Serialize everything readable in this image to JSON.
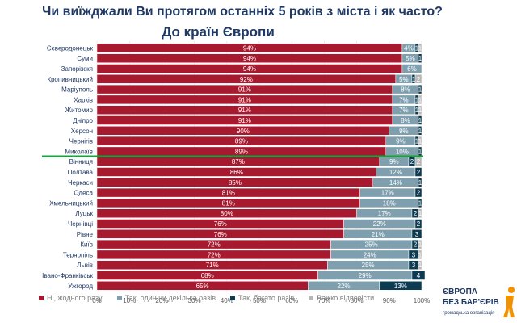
{
  "title": "Чи виїжджали Ви протягом останніх 5 років з міста і як часто?",
  "subtitle": "До країн Європи",
  "colors": {
    "never": "#a6192e",
    "once": "#7f9fae",
    "many": "#0d3c52",
    "hard": "#b7b7b7",
    "divider": "#1e9e3e"
  },
  "legend": [
    {
      "key": "never",
      "label": "Ні, жодного разу"
    },
    {
      "key": "once",
      "label": "Так, один чи декілька разів"
    },
    {
      "key": "many",
      "label": "Так, багато разів"
    },
    {
      "key": "hard",
      "label": "Важко відповісти"
    }
  ],
  "logo": {
    "line1": "ЄВРОПА",
    "line2": "БЕЗ БАР'ЄРІВ",
    "line3": "громадська організація"
  },
  "chart_data": {
    "type": "bar",
    "orientation": "horizontal",
    "stacked": true,
    "title": "Чи виїжджали Ви протягом останніх 5 років з міста і як часто?",
    "subtitle": "До країн Європи",
    "xlim": [
      0,
      100
    ],
    "xticks": [
      "0%",
      "10%",
      "20%",
      "30%",
      "40%",
      "50%",
      "60%",
      "70%",
      "80%",
      "90%",
      "100%"
    ],
    "grid": true,
    "legend_position": "bottom",
    "divider_after": "Миколаїв",
    "categories": [
      "Сєвєродонецьк",
      "Суми",
      "Запоріжжя",
      "Кропивницький",
      "Маріуполь",
      "Харків",
      "Житомир",
      "Дніпро",
      "Херсон",
      "Чернігів",
      "Миколаїв",
      "Вінниця",
      "Полтава",
      "Черкаси",
      "Одеса",
      "Хмельницький",
      "Луцьк",
      "Чернівці",
      "Рівне",
      "Київ",
      "Тернопіль",
      "Львів",
      "Івано-Франківськ",
      "Ужгород"
    ],
    "series": [
      {
        "name": "Ні, жодного разу",
        "key": "never",
        "values": [
          94,
          94,
          94,
          92,
          91,
          91,
          91,
          91,
          90,
          89,
          89,
          87,
          86,
          85,
          81,
          81,
          80,
          76,
          76,
          72,
          72,
          71,
          68,
          65
        ],
        "labels": [
          "94%",
          "94%",
          "94%",
          "92%",
          "91%",
          "91%",
          "91%",
          "91%",
          "90%",
          "89%",
          "89%",
          "87%",
          "86%",
          "85%",
          "81%",
          "81%",
          "80%",
          "76%",
          "76%",
          "72%",
          "72%",
          "71%",
          "68%",
          "65%"
        ]
      },
      {
        "name": "Так, один чи декілька разів",
        "key": "once",
        "values": [
          4,
          5,
          6,
          5,
          8,
          7,
          7,
          8,
          9,
          9,
          10,
          9,
          12,
          14,
          17,
          18,
          17,
          22,
          21,
          25,
          24,
          25,
          29,
          22
        ],
        "labels": [
          "4%",
          "5%",
          "6%",
          "5%",
          "8%",
          "7%",
          "7%",
          "8%",
          "9%",
          "9%",
          "10%",
          "9%",
          "12%",
          "14%",
          "17%",
          "18%",
          "17%",
          "22%",
          "21%",
          "25%",
          "24%",
          "25%",
          "29%",
          "22%"
        ]
      },
      {
        "name": "Так, багато разів",
        "key": "many",
        "values": [
          1,
          1,
          0,
          1,
          1,
          1,
          1,
          1,
          1,
          1,
          1,
          2,
          2,
          1,
          2,
          1,
          2,
          2,
          3,
          2,
          3,
          3,
          4,
          13
        ],
        "labels": [
          "1",
          "1",
          "",
          "1",
          "1",
          "1",
          "1",
          "1",
          "1",
          "1",
          "1",
          "2",
          "2",
          "1",
          "2",
          "1",
          "2",
          "2",
          "3",
          "2",
          "3",
          "3",
          "4",
          "13%"
        ]
      },
      {
        "name": "Важко відповісти",
        "key": "hard",
        "values": [
          1,
          0,
          0,
          2,
          0,
          1,
          1,
          0,
          0,
          1,
          0,
          2,
          0,
          0,
          0,
          0,
          1,
          0,
          0,
          1,
          1,
          1,
          0,
          0
        ],
        "labels": [
          "1",
          "",
          "",
          "2",
          "",
          "1",
          "1",
          "",
          "",
          "1",
          "",
          "2",
          "",
          "",
          "",
          "",
          "1",
          "",
          "",
          "1",
          "1",
          "1",
          "",
          ""
        ]
      }
    ]
  }
}
